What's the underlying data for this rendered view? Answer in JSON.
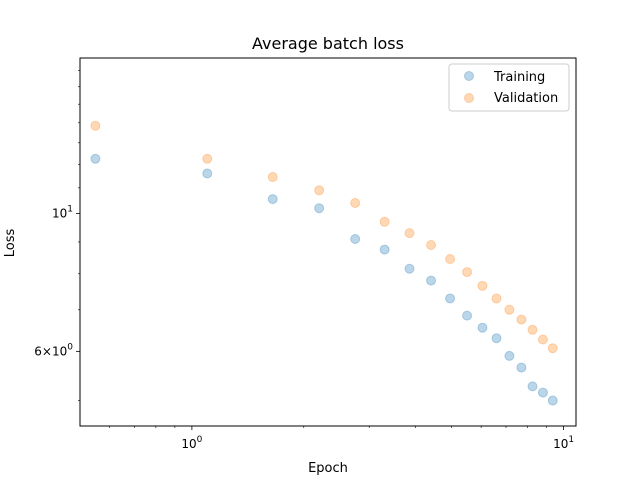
{
  "chart_data": {
    "type": "scatter",
    "title": "Average batch loss",
    "xlabel": "Epoch",
    "ylabel": "Loss",
    "xscale": "log",
    "yscale": "log",
    "xlim": [
      0.5,
      10.8
    ],
    "ylim": [
      4.55,
      17.8
    ],
    "grid": false,
    "legend_position": "top-right",
    "x_ticks": [
      {
        "value": 1,
        "label": "10^0"
      },
      {
        "value": 10,
        "label": "10^1"
      }
    ],
    "y_ticks": [
      {
        "value": 6,
        "label": "6×10^0"
      },
      {
        "value": 10,
        "label": "10^1"
      }
    ],
    "series": [
      {
        "name": "Training",
        "color": "#1f77b4",
        "points": [
          {
            "x": 0.55,
            "y": 12.25
          },
          {
            "x": 1.1,
            "y": 11.6
          },
          {
            "x": 1.65,
            "y": 10.55
          },
          {
            "x": 2.2,
            "y": 10.2
          },
          {
            "x": 2.75,
            "y": 9.1
          },
          {
            "x": 3.3,
            "y": 8.75
          },
          {
            "x": 3.85,
            "y": 8.15
          },
          {
            "x": 4.4,
            "y": 7.8
          },
          {
            "x": 4.95,
            "y": 7.3
          },
          {
            "x": 5.5,
            "y": 6.85
          },
          {
            "x": 6.05,
            "y": 6.55
          },
          {
            "x": 6.6,
            "y": 6.3
          },
          {
            "x": 7.15,
            "y": 5.9
          },
          {
            "x": 7.7,
            "y": 5.65
          },
          {
            "x": 8.25,
            "y": 5.27
          },
          {
            "x": 8.8,
            "y": 5.15
          },
          {
            "x": 9.35,
            "y": 5.0
          }
        ]
      },
      {
        "name": "Validation",
        "color": "#ff7f0e",
        "points": [
          {
            "x": 0.55,
            "y": 13.85
          },
          {
            "x": 1.1,
            "y": 12.25
          },
          {
            "x": 1.65,
            "y": 11.45
          },
          {
            "x": 2.2,
            "y": 10.9
          },
          {
            "x": 2.75,
            "y": 10.4
          },
          {
            "x": 3.3,
            "y": 9.7
          },
          {
            "x": 3.85,
            "y": 9.3
          },
          {
            "x": 4.4,
            "y": 8.9
          },
          {
            "x": 4.95,
            "y": 8.45
          },
          {
            "x": 5.5,
            "y": 8.05
          },
          {
            "x": 6.05,
            "y": 7.65
          },
          {
            "x": 6.6,
            "y": 7.3
          },
          {
            "x": 7.15,
            "y": 7.0
          },
          {
            "x": 7.7,
            "y": 6.75
          },
          {
            "x": 8.25,
            "y": 6.5
          },
          {
            "x": 8.8,
            "y": 6.27
          },
          {
            "x": 9.35,
            "y": 6.07
          }
        ]
      }
    ]
  }
}
